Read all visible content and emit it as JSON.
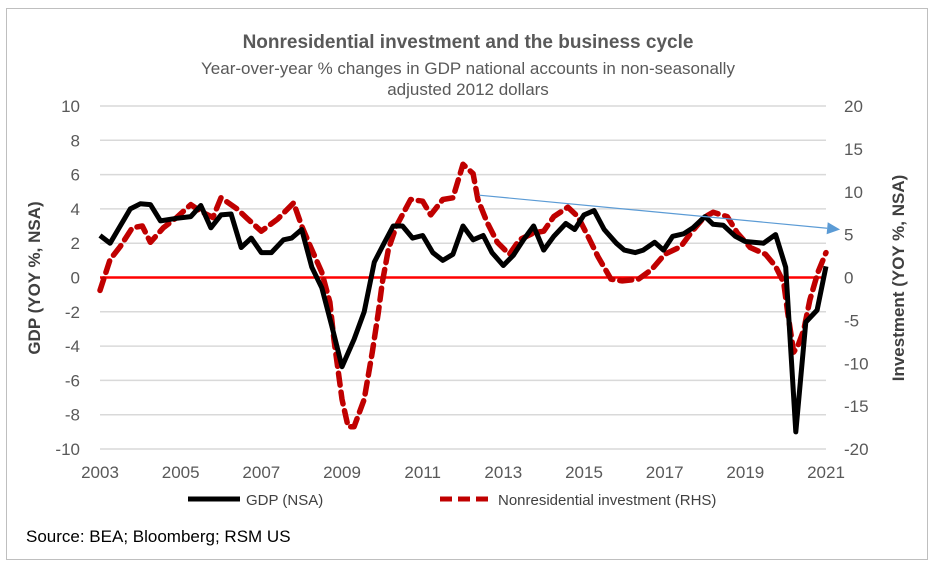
{
  "chart_data": {
    "type": "line",
    "title": "Nonresidential investment and the business cycle",
    "subtitle_lines": [
      "Year-over-year % changes in GDP national accounts in non-seasonally",
      "adjusted 2012 dollars"
    ],
    "ylabel": "GDP (YOY %, NSA)",
    "y2label": "Investment (YOY %, NSA)",
    "xlim": [
      2003,
      2021
    ],
    "ylim": [
      -10,
      10
    ],
    "y2lim": [
      -20,
      20
    ],
    "xticks": [
      "2003",
      "2005",
      "2007",
      "2009",
      "2011",
      "2013",
      "2015",
      "2017",
      "2019",
      "2021"
    ],
    "yticks": [
      "10",
      "8",
      "6",
      "4",
      "2",
      "0",
      "-2",
      "-4",
      "-6",
      "-8",
      "-10"
    ],
    "y2ticks": [
      "20",
      "15",
      "10",
      "5",
      "0",
      "-5",
      "-10",
      "-15",
      "-20"
    ],
    "grid": true,
    "legend_position": "bottom",
    "zero_line_color": "#ff0000",
    "series": [
      {
        "name": "GDP (NSA)",
        "axis": "left",
        "color": "#000000",
        "style": "solid",
        "points": [
          [
            2003.0,
            2.45
          ],
          [
            2003.25,
            2.0
          ],
          [
            2003.5,
            3.0
          ],
          [
            2003.75,
            4.0
          ],
          [
            2004.0,
            4.3
          ],
          [
            2004.25,
            4.25
          ],
          [
            2004.5,
            3.3
          ],
          [
            2004.9,
            3.45
          ],
          [
            2005.25,
            3.55
          ],
          [
            2005.5,
            4.2
          ],
          [
            2005.75,
            2.9
          ],
          [
            2006.0,
            3.65
          ],
          [
            2006.25,
            3.7
          ],
          [
            2006.5,
            1.75
          ],
          [
            2006.75,
            2.3
          ],
          [
            2007.0,
            1.45
          ],
          [
            2007.25,
            1.45
          ],
          [
            2007.55,
            2.2
          ],
          [
            2007.75,
            2.3
          ],
          [
            2008.0,
            2.8
          ],
          [
            2008.25,
            0.6
          ],
          [
            2008.5,
            -0.6
          ],
          [
            2008.75,
            -2.85
          ],
          [
            2009.0,
            -5.2
          ],
          [
            2009.3,
            -3.6
          ],
          [
            2009.55,
            -2.0
          ],
          [
            2009.8,
            0.9
          ],
          [
            2010.0,
            1.8
          ],
          [
            2010.27,
            3.0
          ],
          [
            2010.5,
            3.0
          ],
          [
            2010.75,
            2.3
          ],
          [
            2011.0,
            2.45
          ],
          [
            2011.25,
            1.45
          ],
          [
            2011.5,
            1.0
          ],
          [
            2011.75,
            1.35
          ],
          [
            2012.0,
            3.0
          ],
          [
            2012.25,
            2.2
          ],
          [
            2012.5,
            2.45
          ],
          [
            2012.72,
            1.45
          ],
          [
            2013.0,
            0.7
          ],
          [
            2013.25,
            1.3
          ],
          [
            2013.5,
            2.2
          ],
          [
            2013.75,
            3.0
          ],
          [
            2014.0,
            1.6
          ],
          [
            2014.25,
            2.4
          ],
          [
            2014.55,
            3.15
          ],
          [
            2014.77,
            2.8
          ],
          [
            2015.0,
            3.65
          ],
          [
            2015.25,
            3.9
          ],
          [
            2015.5,
            2.8
          ],
          [
            2015.8,
            2.0
          ],
          [
            2016.0,
            1.6
          ],
          [
            2016.27,
            1.45
          ],
          [
            2016.47,
            1.6
          ],
          [
            2016.75,
            2.05
          ],
          [
            2016.97,
            1.6
          ],
          [
            2017.2,
            2.4
          ],
          [
            2017.47,
            2.55
          ],
          [
            2017.7,
            2.9
          ],
          [
            2018.0,
            3.55
          ],
          [
            2018.2,
            3.1
          ],
          [
            2018.45,
            3.05
          ],
          [
            2018.75,
            2.4
          ],
          [
            2019.0,
            2.1
          ],
          [
            2019.2,
            2.05
          ],
          [
            2019.45,
            2.0
          ],
          [
            2019.75,
            2.5
          ],
          [
            2020.0,
            0.6
          ],
          [
            2020.25,
            -9.0
          ],
          [
            2020.5,
            -2.6
          ],
          [
            2020.78,
            -1.9
          ],
          [
            2021.0,
            0.65
          ]
        ]
      },
      {
        "name": "Nonresidential investment (RHS)",
        "axis": "right",
        "color": "#c00000",
        "style": "dashed",
        "points": [
          [
            2003.0,
            -1.5
          ],
          [
            2003.25,
            2.1
          ],
          [
            2003.5,
            3.6
          ],
          [
            2003.8,
            5.8
          ],
          [
            2004.05,
            6.0
          ],
          [
            2004.25,
            4.1
          ],
          [
            2004.57,
            5.8
          ],
          [
            2004.9,
            7.0
          ],
          [
            2005.25,
            8.5
          ],
          [
            2005.5,
            7.7
          ],
          [
            2005.8,
            7.0
          ],
          [
            2006.0,
            9.3
          ],
          [
            2006.4,
            8.0
          ],
          [
            2006.67,
            6.8
          ],
          [
            2007.0,
            5.4
          ],
          [
            2007.4,
            6.8
          ],
          [
            2007.8,
            8.7
          ],
          [
            2008.0,
            6.0
          ],
          [
            2008.2,
            3.8
          ],
          [
            2008.5,
            0.6
          ],
          [
            2008.7,
            -2.9
          ],
          [
            2008.8,
            -7.2
          ],
          [
            2009.0,
            -14.2
          ],
          [
            2009.15,
            -17.4
          ],
          [
            2009.3,
            -17.4
          ],
          [
            2009.55,
            -14.2
          ],
          [
            2009.75,
            -8.7
          ],
          [
            2009.9,
            -4.1
          ],
          [
            2010.0,
            -0.6
          ],
          [
            2010.15,
            3.3
          ],
          [
            2010.35,
            6.0
          ],
          [
            2010.7,
            9.1
          ],
          [
            2011.0,
            8.9
          ],
          [
            2011.2,
            7.3
          ],
          [
            2011.5,
            9.1
          ],
          [
            2011.75,
            9.3
          ],
          [
            2012.0,
            13.2
          ],
          [
            2012.25,
            12.1
          ],
          [
            2012.37,
            9.1
          ],
          [
            2012.6,
            6.4
          ],
          [
            2012.85,
            4.1
          ],
          [
            2013.15,
            2.7
          ],
          [
            2013.4,
            4.4
          ],
          [
            2013.75,
            5.2
          ],
          [
            2014.0,
            5.4
          ],
          [
            2014.25,
            7.1
          ],
          [
            2014.6,
            8.2
          ],
          [
            2014.85,
            7.1
          ],
          [
            2015.1,
            4.8
          ],
          [
            2015.35,
            2.4
          ],
          [
            2015.67,
            -0.2
          ],
          [
            2015.95,
            -0.4
          ],
          [
            2016.35,
            -0.2
          ],
          [
            2016.67,
            0.9
          ],
          [
            2017.0,
            2.7
          ],
          [
            2017.4,
            3.6
          ],
          [
            2017.65,
            5.2
          ],
          [
            2017.97,
            7.0
          ],
          [
            2018.2,
            7.6
          ],
          [
            2018.55,
            7.1
          ],
          [
            2018.8,
            5.2
          ],
          [
            2019.12,
            3.5
          ],
          [
            2019.5,
            2.7
          ],
          [
            2019.75,
            1.3
          ],
          [
            2019.95,
            -0.6
          ],
          [
            2020.05,
            -4.1
          ],
          [
            2020.2,
            -8.7
          ],
          [
            2020.3,
            -8.0
          ],
          [
            2020.45,
            -6.1
          ],
          [
            2020.6,
            -2.6
          ],
          [
            2020.8,
            0.6
          ],
          [
            2021.0,
            2.9
          ]
        ]
      }
    ],
    "annotations": [
      {
        "type": "arrow",
        "axis": "right",
        "color": "#5b9bd5",
        "from": [
          2012.4,
          9.6
        ],
        "to": [
          2021.35,
          5.6
        ]
      }
    ]
  },
  "source": "Source: BEA; Bloomberg; RSM US"
}
